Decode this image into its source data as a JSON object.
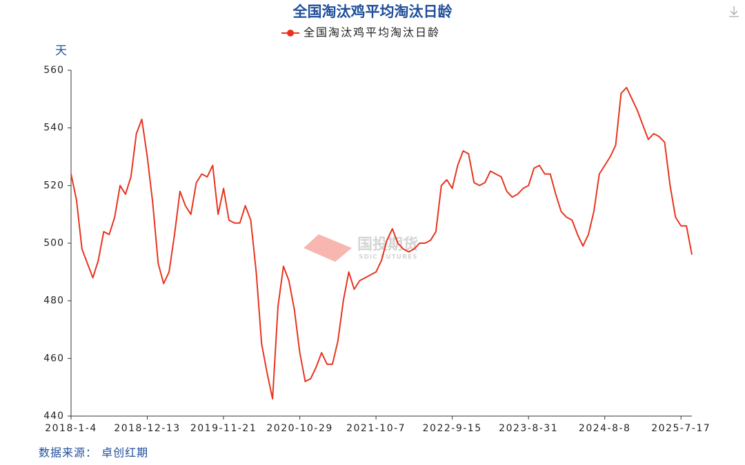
{
  "chart_data": {
    "type": "line",
    "title": "全国淘汰鸡平均淘汰日龄",
    "y_unit": "天",
    "source": "数据来源： 卓创红期",
    "watermark": {
      "name": "国投期货",
      "sub": "SDIC FUTURES"
    },
    "categories": [
      "2018-1-4",
      null,
      null,
      null,
      null,
      null,
      null,
      null,
      null,
      null,
      null,
      null,
      null,
      null,
      "2018-12-13",
      null,
      null,
      null,
      null,
      null,
      null,
      null,
      null,
      null,
      null,
      null,
      null,
      null,
      "2019-11-21",
      null,
      null,
      null,
      null,
      null,
      null,
      null,
      null,
      null,
      null,
      null,
      null,
      null,
      "2020-10-29",
      null,
      null,
      null,
      null,
      null,
      null,
      null,
      null,
      null,
      null,
      null,
      null,
      null,
      "2021-10-7",
      null,
      null,
      null,
      null,
      null,
      null,
      null,
      null,
      null,
      null,
      null,
      null,
      null,
      "2022-9-15",
      null,
      null,
      null,
      null,
      null,
      null,
      null,
      null,
      null,
      null,
      null,
      null,
      null,
      "2023-8-31",
      null,
      null,
      null,
      null,
      null,
      null,
      null,
      null,
      null,
      null,
      null,
      null,
      null,
      "2024-8-8",
      null,
      null,
      null,
      null,
      null,
      null,
      null,
      null,
      null,
      null,
      null,
      null,
      null,
      "2025-7-17",
      null,
      null
    ],
    "series": [
      {
        "name": "全国淘汰鸡平均淘汰日龄",
        "color": "#e8321e",
        "values": [
          524,
          515,
          498,
          493,
          488,
          494,
          504,
          503,
          509,
          520,
          517,
          523,
          538,
          543,
          530,
          514,
          493,
          486,
          490,
          503,
          518,
          513,
          510,
          521,
          524,
          523,
          527,
          510,
          519,
          508,
          507,
          507,
          513,
          508,
          490,
          465,
          455,
          446,
          478,
          492,
          487,
          477,
          462,
          452,
          453,
          457,
          462,
          458,
          458,
          466,
          480,
          490,
          484,
          487,
          488,
          489,
          490,
          494,
          501,
          505,
          500,
          498,
          497,
          498,
          500,
          500,
          501,
          504,
          520,
          522,
          519,
          527,
          532,
          531,
          521,
          520,
          521,
          525,
          524,
          523,
          518,
          516,
          517,
          519,
          520,
          526,
          527,
          524,
          524,
          517,
          511,
          509,
          508,
          503,
          499,
          503,
          511,
          524,
          527,
          530,
          534,
          552,
          554,
          550,
          546,
          541,
          536,
          538,
          537,
          535,
          520,
          509,
          506,
          506,
          496
        ]
      }
    ],
    "ylim": [
      440,
      560
    ],
    "yticks": [
      440,
      460,
      480,
      500,
      520,
      540,
      560
    ],
    "grid": false
  }
}
